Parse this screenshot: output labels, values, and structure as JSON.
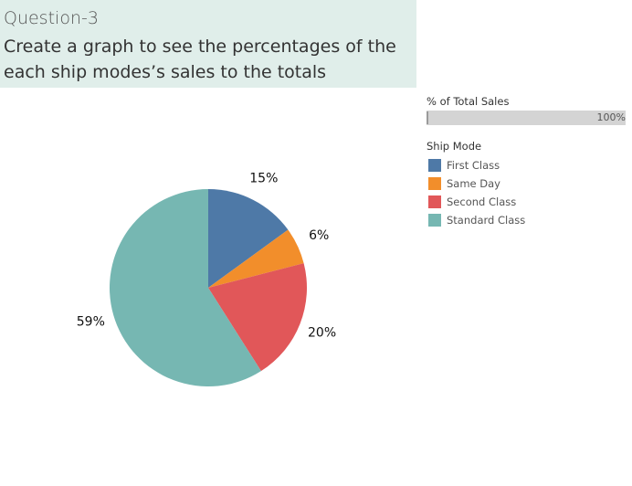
{
  "header": {
    "label": "Question-3",
    "title": "Create a graph to see the percentages of  the each ship modes’s sales to the totals"
  },
  "filter": {
    "title": "% of Total Sales",
    "value_label": "100%",
    "level": 1.0
  },
  "legend": {
    "title": "Ship Mode",
    "items": [
      {
        "label": "First Class",
        "color": "#4e79a7"
      },
      {
        "label": "Same Day",
        "color": "#f28e2b"
      },
      {
        "label": "Second Class",
        "color": "#e15759"
      },
      {
        "label": "Standard Class",
        "color": "#76b7b2"
      }
    ]
  },
  "chart_data": {
    "type": "pie",
    "title": "",
    "categories": [
      "First Class",
      "Same Day",
      "Second Class",
      "Standard Class"
    ],
    "values": [
      15,
      6,
      20,
      59
    ],
    "labels": [
      "15%",
      "6%",
      "20%",
      "59%"
    ],
    "colors": [
      "#4e79a7",
      "#f28e2b",
      "#e15759",
      "#76b7b2"
    ],
    "unit": "%"
  }
}
